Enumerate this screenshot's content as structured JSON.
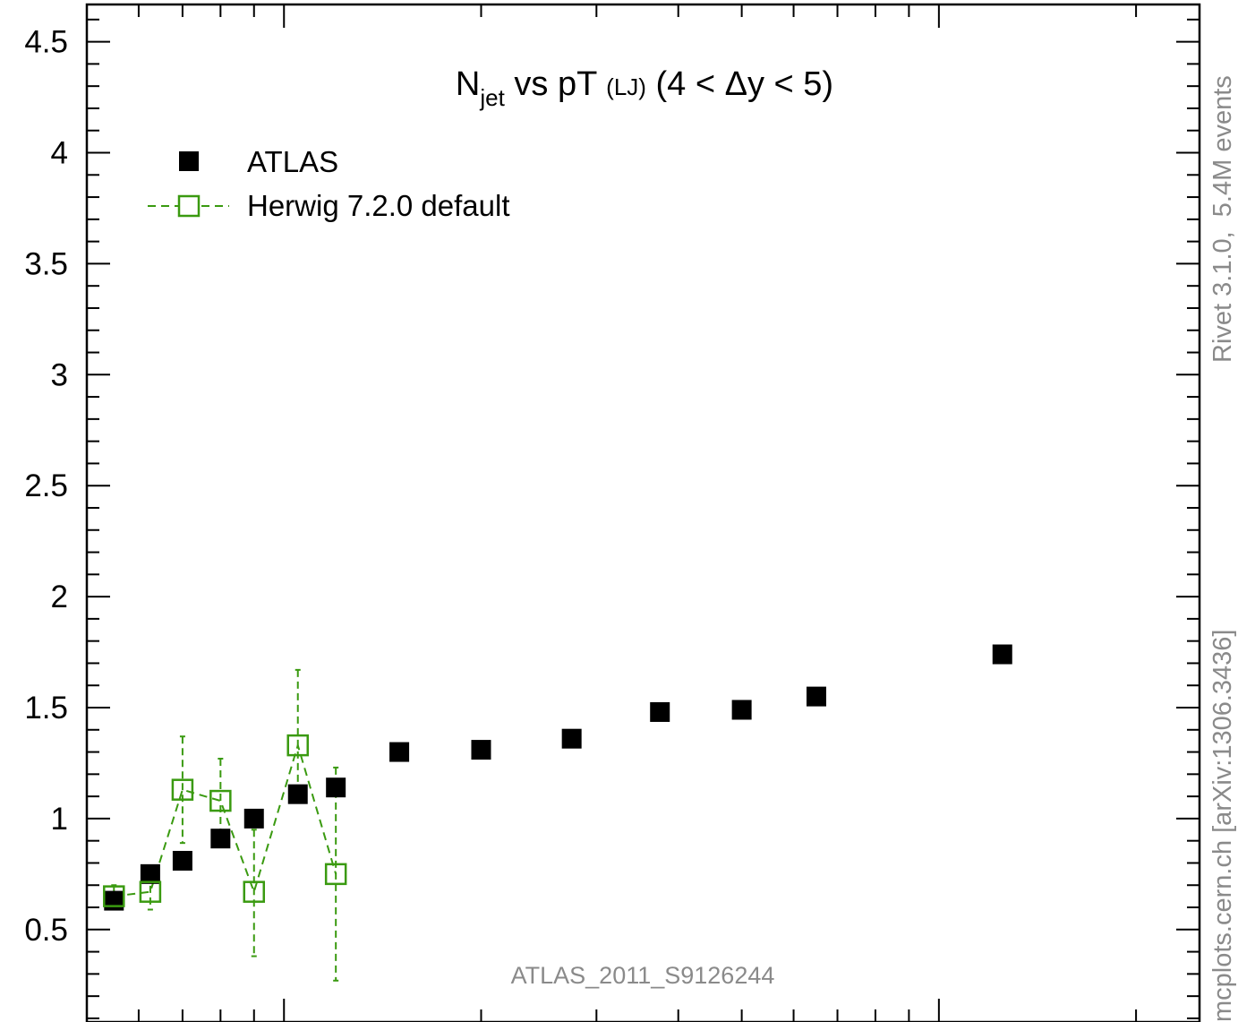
{
  "chart_data": {
    "type": "scatter",
    "title": {
      "base": "N",
      "base_sub": "jet",
      "rest": " vs pT ",
      "small": "(LJ)",
      "range": " (4 < Δy < 5)"
    },
    "xlabel": "",
    "ylabel": "",
    "ylim": [
      0.1,
      4.65
    ],
    "yticks": [
      {
        "value": 0.5,
        "label": "0.5"
      },
      {
        "value": 1,
        "label": "1"
      },
      {
        "value": 1.5,
        "label": "1.5"
      },
      {
        "value": 2,
        "label": "2"
      },
      {
        "value": 2.5,
        "label": "2.5"
      },
      {
        "value": 3,
        "label": "3"
      },
      {
        "value": 3.5,
        "label": "3.5"
      },
      {
        "value": 4,
        "label": "4"
      },
      {
        "value": 4.5,
        "label": "4.5"
      }
    ],
    "xscale": "log",
    "xlim": [
      50,
      2500
    ],
    "legend_position": "top-left",
    "series": [
      {
        "name": "ATLAS",
        "style": "filled-square",
        "color": "#000000",
        "x": [
          55,
          62.5,
          70,
          80,
          90,
          105,
          120,
          150,
          200,
          275,
          375,
          500,
          650,
          1250
        ],
        "y": [
          0.63,
          0.75,
          0.81,
          0.91,
          1.0,
          1.11,
          1.14,
          1.3,
          1.31,
          1.36,
          1.48,
          1.49,
          1.55,
          1.74
        ]
      },
      {
        "name": "Herwig 7.2.0 default",
        "style": "open-square-dashed",
        "color": "#3a9a10",
        "x": [
          55,
          62.5,
          70,
          80,
          90,
          105,
          120
        ],
        "y": [
          0.65,
          0.67,
          1.13,
          1.08,
          0.67,
          1.33,
          0.75
        ],
        "err_low": [
          0.05,
          0.08,
          0.24,
          0.18,
          0.29,
          0.23,
          0.48
        ],
        "err_high": [
          0.05,
          0.08,
          0.24,
          0.19,
          0.28,
          0.34,
          0.48
        ]
      }
    ],
    "annotation": "ATLAS_2011_S9126244",
    "side_text_top": "Rivet 3.1.0,  5.4M events",
    "side_text_bottom": "mcplots.cern.ch [arXiv:1306.3436]"
  }
}
